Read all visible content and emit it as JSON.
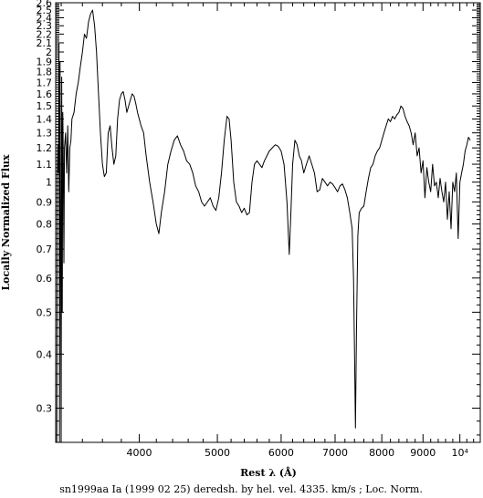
{
  "chart_data": {
    "type": "line",
    "title": "",
    "xlabel": "Rest λ (Å)",
    "ylabel": "Locally Normalized Flux",
    "caption": "sn1999aa Ia (1999 02 25) deredsh. by hel. vel.  4335. km/s ;  Loc. Norm.",
    "x_scale": "log",
    "y_scale": "log",
    "xlim": [
      3150,
      10600
    ],
    "ylim": [
      0.25,
      2.6
    ],
    "x_ticks": [
      {
        "value": 4000,
        "label": "4000"
      },
      {
        "value": 5000,
        "label": "5000"
      },
      {
        "value": 6000,
        "label": "6000"
      },
      {
        "value": 7000,
        "label": "7000"
      },
      {
        "value": 8000,
        "label": "8000"
      },
      {
        "value": 9000,
        "label": "9000"
      },
      {
        "value": 10000,
        "label": "10⁴"
      }
    ],
    "y_ticks": [
      {
        "value": 0.3,
        "label": "0.3"
      },
      {
        "value": 0.4,
        "label": "0.4"
      },
      {
        "value": 0.5,
        "label": "0.5"
      },
      {
        "value": 0.6,
        "label": "0.6"
      },
      {
        "value": 0.7,
        "label": "0.7"
      },
      {
        "value": 0.8,
        "label": "0.8"
      },
      {
        "value": 0.9,
        "label": "0.9"
      },
      {
        "value": 1.0,
        "label": "1"
      },
      {
        "value": 1.1,
        "label": "1.1"
      },
      {
        "value": 1.2,
        "label": "1.2"
      },
      {
        "value": 1.3,
        "label": "1.3"
      },
      {
        "value": 1.4,
        "label": "1.4"
      },
      {
        "value": 1.5,
        "label": "1.5"
      },
      {
        "value": 1.6,
        "label": "1.6"
      },
      {
        "value": 1.7,
        "label": "1.7"
      },
      {
        "value": 1.8,
        "label": "1.8"
      },
      {
        "value": 1.9,
        "label": "1.9"
      },
      {
        "value": 2.0,
        "label": "2"
      },
      {
        "value": 2.1,
        "label": "2.1"
      },
      {
        "value": 2.2,
        "label": "2.2"
      },
      {
        "value": 2.3,
        "label": "2.3"
      },
      {
        "value": 2.4,
        "label": "2.4"
      },
      {
        "value": 2.5,
        "label": "2.5"
      },
      {
        "value": 2.6,
        "label": "2.6"
      }
    ],
    "series": [
      {
        "color": "#000000",
        "points": [
          [
            3160,
            0.25
          ],
          [
            3165,
            1.05
          ],
          [
            3170,
            1.22
          ],
          [
            3175,
            1.05
          ],
          [
            3180,
            2.1
          ],
          [
            3185,
            0.25
          ],
          [
            3190,
            1.9
          ],
          [
            3195,
            0.78
          ],
          [
            3200,
            0.25
          ],
          [
            3205,
            1.75
          ],
          [
            3210,
            0.5
          ],
          [
            3215,
            1.45
          ],
          [
            3220,
            1.1
          ],
          [
            3225,
            0.65
          ],
          [
            3230,
            1.2
          ],
          [
            3240,
            1.3
          ],
          [
            3250,
            1.05
          ],
          [
            3260,
            1.35
          ],
          [
            3270,
            0.95
          ],
          [
            3280,
            1.2
          ],
          [
            3290,
            1.25
          ],
          [
            3300,
            1.4
          ],
          [
            3320,
            1.45
          ],
          [
            3340,
            1.6
          ],
          [
            3360,
            1.7
          ],
          [
            3380,
            1.85
          ],
          [
            3400,
            2.0
          ],
          [
            3420,
            2.2
          ],
          [
            3440,
            2.15
          ],
          [
            3460,
            2.35
          ],
          [
            3480,
            2.45
          ],
          [
            3500,
            2.5
          ],
          [
            3520,
            2.3
          ],
          [
            3540,
            2.0
          ],
          [
            3560,
            1.6
          ],
          [
            3580,
            1.3
          ],
          [
            3600,
            1.1
          ],
          [
            3620,
            1.03
          ],
          [
            3640,
            1.05
          ],
          [
            3660,
            1.3
          ],
          [
            3680,
            1.35
          ],
          [
            3700,
            1.2
          ],
          [
            3720,
            1.1
          ],
          [
            3740,
            1.15
          ],
          [
            3760,
            1.4
          ],
          [
            3780,
            1.55
          ],
          [
            3800,
            1.6
          ],
          [
            3820,
            1.62
          ],
          [
            3840,
            1.55
          ],
          [
            3860,
            1.45
          ],
          [
            3880,
            1.5
          ],
          [
            3900,
            1.55
          ],
          [
            3920,
            1.6
          ],
          [
            3940,
            1.58
          ],
          [
            3960,
            1.52
          ],
          [
            3980,
            1.45
          ],
          [
            4000,
            1.4
          ],
          [
            4020,
            1.35
          ],
          [
            4050,
            1.3
          ],
          [
            4080,
            1.15
          ],
          [
            4120,
            1.0
          ],
          [
            4160,
            0.9
          ],
          [
            4200,
            0.8
          ],
          [
            4230,
            0.76
          ],
          [
            4260,
            0.85
          ],
          [
            4300,
            0.95
          ],
          [
            4340,
            1.1
          ],
          [
            4380,
            1.18
          ],
          [
            4420,
            1.25
          ],
          [
            4460,
            1.28
          ],
          [
            4500,
            1.22
          ],
          [
            4540,
            1.18
          ],
          [
            4580,
            1.12
          ],
          [
            4620,
            1.1
          ],
          [
            4660,
            1.05
          ],
          [
            4700,
            0.98
          ],
          [
            4740,
            0.95
          ],
          [
            4780,
            0.9
          ],
          [
            4820,
            0.88
          ],
          [
            4860,
            0.9
          ],
          [
            4900,
            0.92
          ],
          [
            4940,
            0.88
          ],
          [
            4980,
            0.86
          ],
          [
            5020,
            0.92
          ],
          [
            5060,
            1.05
          ],
          [
            5100,
            1.25
          ],
          [
            5140,
            1.42
          ],
          [
            5170,
            1.4
          ],
          [
            5200,
            1.25
          ],
          [
            5240,
            1.0
          ],
          [
            5280,
            0.9
          ],
          [
            5320,
            0.88
          ],
          [
            5360,
            0.85
          ],
          [
            5400,
            0.87
          ],
          [
            5440,
            0.84
          ],
          [
            5480,
            0.85
          ],
          [
            5520,
            1.0
          ],
          [
            5560,
            1.1
          ],
          [
            5600,
            1.12
          ],
          [
            5640,
            1.1
          ],
          [
            5680,
            1.08
          ],
          [
            5720,
            1.12
          ],
          [
            5760,
            1.15
          ],
          [
            5800,
            1.18
          ],
          [
            5850,
            1.2
          ],
          [
            5900,
            1.22
          ],
          [
            5950,
            1.21
          ],
          [
            6000,
            1.18
          ],
          [
            6050,
            1.1
          ],
          [
            6100,
            0.9
          ],
          [
            6140,
            0.68
          ],
          [
            6170,
            0.85
          ],
          [
            6200,
            1.1
          ],
          [
            6240,
            1.25
          ],
          [
            6280,
            1.22
          ],
          [
            6320,
            1.15
          ],
          [
            6360,
            1.12
          ],
          [
            6400,
            1.05
          ],
          [
            6450,
            1.1
          ],
          [
            6500,
            1.15
          ],
          [
            6550,
            1.1
          ],
          [
            6600,
            1.05
          ],
          [
            6650,
            0.95
          ],
          [
            6700,
            0.96
          ],
          [
            6750,
            1.02
          ],
          [
            6800,
            1.0
          ],
          [
            6850,
            0.98
          ],
          [
            6900,
            1.0
          ],
          [
            6950,
            0.99
          ],
          [
            7000,
            0.97
          ],
          [
            7050,
            0.95
          ],
          [
            7100,
            0.98
          ],
          [
            7150,
            0.99
          ],
          [
            7200,
            0.96
          ],
          [
            7250,
            0.92
          ],
          [
            7300,
            0.85
          ],
          [
            7350,
            0.78
          ],
          [
            7380,
            0.6
          ],
          [
            7400,
            0.4
          ],
          [
            7420,
            0.27
          ],
          [
            7440,
            0.45
          ],
          [
            7470,
            0.75
          ],
          [
            7500,
            0.85
          ],
          [
            7550,
            0.87
          ],
          [
            7600,
            0.88
          ],
          [
            7650,
            0.95
          ],
          [
            7700,
            1.02
          ],
          [
            7750,
            1.08
          ],
          [
            7800,
            1.1
          ],
          [
            7850,
            1.15
          ],
          [
            7900,
            1.18
          ],
          [
            7950,
            1.2
          ],
          [
            8000,
            1.25
          ],
          [
            8050,
            1.3
          ],
          [
            8100,
            1.35
          ],
          [
            8150,
            1.4
          ],
          [
            8200,
            1.38
          ],
          [
            8250,
            1.42
          ],
          [
            8300,
            1.4
          ],
          [
            8350,
            1.43
          ],
          [
            8400,
            1.45
          ],
          [
            8450,
            1.5
          ],
          [
            8500,
            1.48
          ],
          [
            8550,
            1.42
          ],
          [
            8600,
            1.38
          ],
          [
            8650,
            1.35
          ],
          [
            8700,
            1.3
          ],
          [
            8750,
            1.22
          ],
          [
            8800,
            1.3
          ],
          [
            8850,
            1.15
          ],
          [
            8900,
            1.2
          ],
          [
            8950,
            1.05
          ],
          [
            9000,
            1.12
          ],
          [
            9050,
            0.92
          ],
          [
            9100,
            1.08
          ],
          [
            9150,
            1.0
          ],
          [
            9200,
            0.95
          ],
          [
            9250,
            1.1
          ],
          [
            9300,
            0.98
          ],
          [
            9350,
            1.0
          ],
          [
            9400,
            0.92
          ],
          [
            9450,
            1.02
          ],
          [
            9500,
            0.95
          ],
          [
            9550,
            0.9
          ],
          [
            9600,
            1.0
          ],
          [
            9650,
            0.82
          ],
          [
            9700,
            0.95
          ],
          [
            9750,
            0.78
          ],
          [
            9800,
            1.0
          ],
          [
            9850,
            0.95
          ],
          [
            9900,
            1.05
          ],
          [
            9950,
            0.74
          ],
          [
            10000,
            1.0
          ],
          [
            10050,
            1.05
          ],
          [
            10100,
            1.1
          ],
          [
            10150,
            1.18
          ],
          [
            10200,
            1.22
          ],
          [
            10250,
            1.27
          ],
          [
            10300,
            1.25
          ]
        ]
      }
    ]
  }
}
